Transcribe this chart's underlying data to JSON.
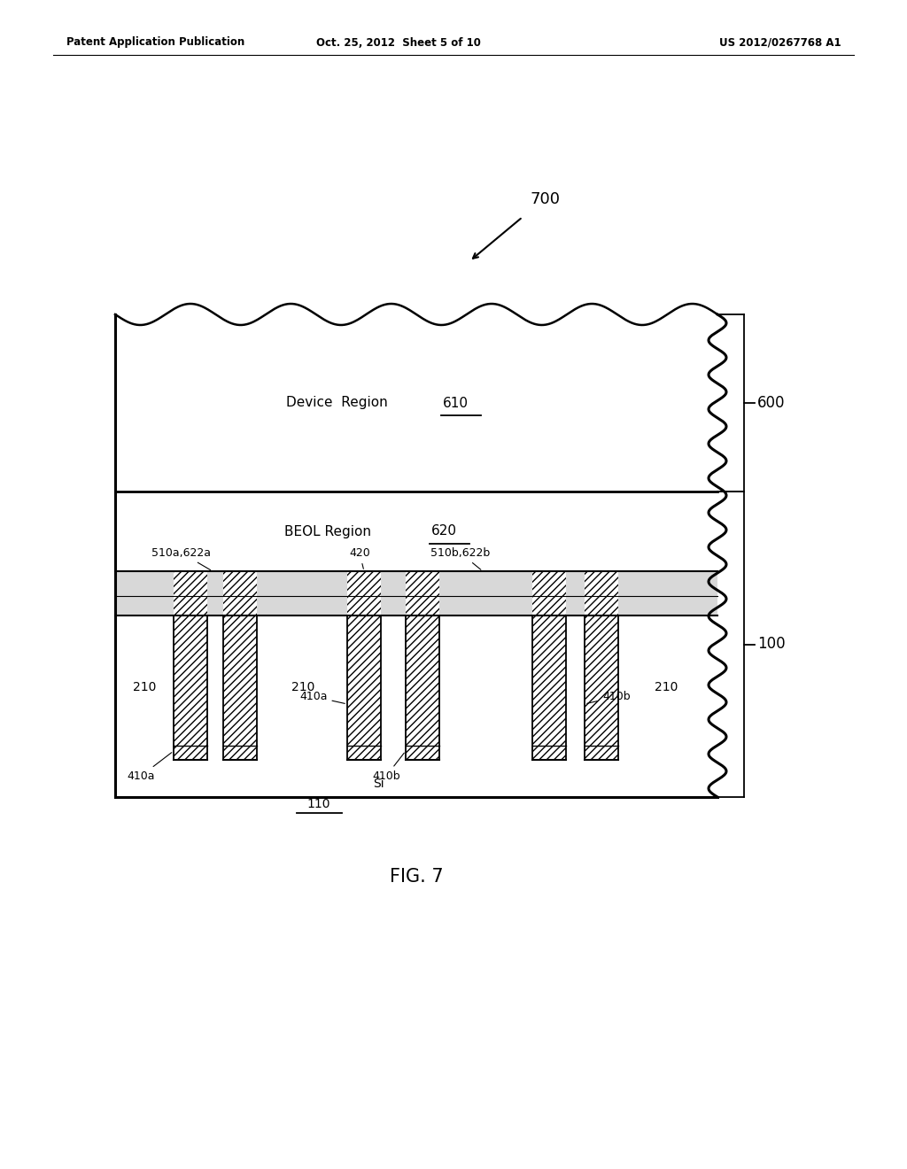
{
  "bg_color": "#ffffff",
  "header_left": "Patent Application Publication",
  "header_mid": "Oct. 25, 2012  Sheet 5 of 10",
  "header_right": "US 2012/0267768 A1",
  "fig_label": "FIG. 7",
  "label_700": "700",
  "label_600": "600",
  "label_100": "100",
  "label_610": "610",
  "label_620": "620",
  "label_110": "110",
  "label_420": "420",
  "label_210": "210",
  "label_510a622a": "510a,622a",
  "label_510b622b": "510b,622b",
  "label_410a": "410a",
  "label_410b": "410b",
  "label_Si": "Si"
}
